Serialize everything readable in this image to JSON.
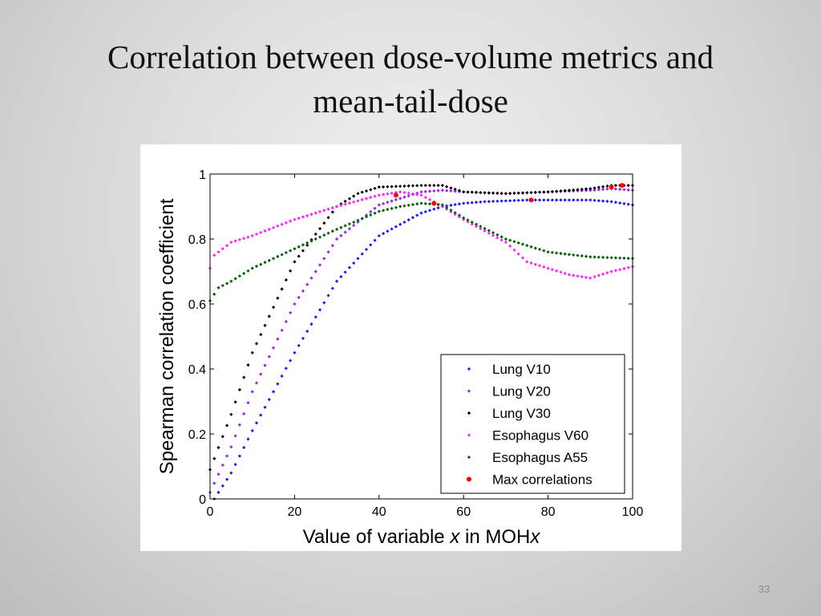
{
  "slide": {
    "title_line1": "Correlation between dose-volume metrics and",
    "title_line2": "mean-tail-dose",
    "number": "33"
  },
  "chart_data": {
    "type": "scatter",
    "title": "",
    "xlabel_prefix": "Value of variable ",
    "xlabel_var": "x",
    "xlabel_mid": " in MOH",
    "xlabel_suffix_var": "x",
    "ylabel": "Spearman correlation coefficient",
    "xlim": [
      0,
      100
    ],
    "ylim": [
      0,
      1
    ],
    "xticks": [
      0,
      20,
      40,
      60,
      80,
      100
    ],
    "yticks": [
      0,
      0.2,
      0.4,
      0.6,
      0.8,
      1
    ],
    "grid": false,
    "legend_position": "bottom-right",
    "series": [
      {
        "name": "Lung V10",
        "color": "#1a1aff",
        "knots": [
          [
            0,
            -0.02
          ],
          [
            5,
            0.08
          ],
          [
            10,
            0.21
          ],
          [
            20,
            0.45
          ],
          [
            30,
            0.67
          ],
          [
            40,
            0.81
          ],
          [
            50,
            0.88
          ],
          [
            55,
            0.9
          ],
          [
            60,
            0.91
          ],
          [
            65,
            0.915
          ],
          [
            75,
            0.92
          ],
          [
            85,
            0.92
          ],
          [
            90,
            0.92
          ],
          [
            95,
            0.915
          ],
          [
            100,
            0.905
          ]
        ]
      },
      {
        "name": "Lung V20",
        "color": "#a020f0",
        "knots": [
          [
            0,
            0.02
          ],
          [
            5,
            0.16
          ],
          [
            10,
            0.33
          ],
          [
            20,
            0.6
          ],
          [
            30,
            0.8
          ],
          [
            40,
            0.905
          ],
          [
            50,
            0.945
          ],
          [
            55,
            0.95
          ],
          [
            60,
            0.945
          ],
          [
            70,
            0.94
          ],
          [
            80,
            0.945
          ],
          [
            90,
            0.95
          ],
          [
            95,
            0.955
          ],
          [
            100,
            0.95
          ]
        ]
      },
      {
        "name": "Lung V30",
        "color": "#000000",
        "knots": [
          [
            0,
            0.09
          ],
          [
            5,
            0.26
          ],
          [
            10,
            0.45
          ],
          [
            20,
            0.73
          ],
          [
            30,
            0.9
          ],
          [
            35,
            0.94
          ],
          [
            40,
            0.96
          ],
          [
            50,
            0.965
          ],
          [
            55,
            0.965
          ],
          [
            60,
            0.945
          ],
          [
            70,
            0.94
          ],
          [
            80,
            0.945
          ],
          [
            90,
            0.955
          ],
          [
            95,
            0.965
          ],
          [
            100,
            0.965
          ]
        ]
      },
      {
        "name": "Esophagus V60",
        "color": "#ff22ff",
        "knots": [
          [
            0,
            0.71
          ],
          [
            1,
            0.75
          ],
          [
            5,
            0.79
          ],
          [
            10,
            0.81
          ],
          [
            20,
            0.86
          ],
          [
            30,
            0.9
          ],
          [
            40,
            0.935
          ],
          [
            45,
            0.945
          ],
          [
            50,
            0.935
          ],
          [
            55,
            0.9
          ],
          [
            60,
            0.86
          ],
          [
            70,
            0.79
          ],
          [
            75,
            0.73
          ],
          [
            80,
            0.71
          ],
          [
            85,
            0.69
          ],
          [
            90,
            0.68
          ],
          [
            95,
            0.7
          ],
          [
            100,
            0.715
          ]
        ]
      },
      {
        "name": "Esophagus A55",
        "color": "#006400",
        "knots": [
          [
            0,
            0.61
          ],
          [
            2,
            0.65
          ],
          [
            5,
            0.67
          ],
          [
            10,
            0.71
          ],
          [
            20,
            0.77
          ],
          [
            30,
            0.83
          ],
          [
            40,
            0.885
          ],
          [
            45,
            0.9
          ],
          [
            50,
            0.91
          ],
          [
            55,
            0.905
          ],
          [
            60,
            0.865
          ],
          [
            70,
            0.8
          ],
          [
            80,
            0.76
          ],
          [
            90,
            0.745
          ],
          [
            100,
            0.74
          ]
        ]
      },
      {
        "name": "Max correlations",
        "color": "#ff0000",
        "points": [
          [
            44,
            0.935
          ],
          [
            53,
            0.91
          ],
          [
            76,
            0.92
          ],
          [
            95,
            0.96
          ],
          [
            97.5,
            0.965
          ]
        ]
      }
    ]
  }
}
